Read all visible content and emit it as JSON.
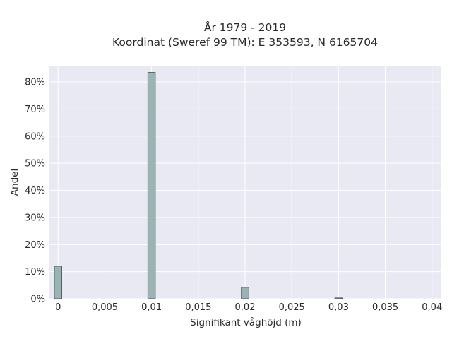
{
  "chart_data": {
    "type": "bar",
    "title_line1": "År 1979 - 2019",
    "title_line2": "Koordinat (Sweref 99 TM): E 353593, N 6165704",
    "xlabel": "Signifikant våghöjd (m)",
    "ylabel": "Andel",
    "x_ticks": [
      "0",
      "0,005",
      "0,01",
      "0,015",
      "0,02",
      "0,025",
      "0,03",
      "0,035",
      "0,04"
    ],
    "y_ticks": [
      "0%",
      "10%",
      "20%",
      "30%",
      "40%",
      "50%",
      "60%",
      "70%",
      "80%"
    ],
    "xlim": [
      -0.001,
      0.041
    ],
    "ylim": [
      0,
      86
    ],
    "bar_width": 0.0008,
    "x": [
      0.0,
      0.01,
      0.02,
      0.03
    ],
    "values": [
      12.0,
      83.5,
      4.2,
      0.3
    ],
    "grid": true,
    "colors": {
      "bar": "#9ab4b4",
      "bar_edge": "#3b4a4a",
      "plot_bg": "#e8e9f2",
      "grid": "#ffffff"
    }
  }
}
